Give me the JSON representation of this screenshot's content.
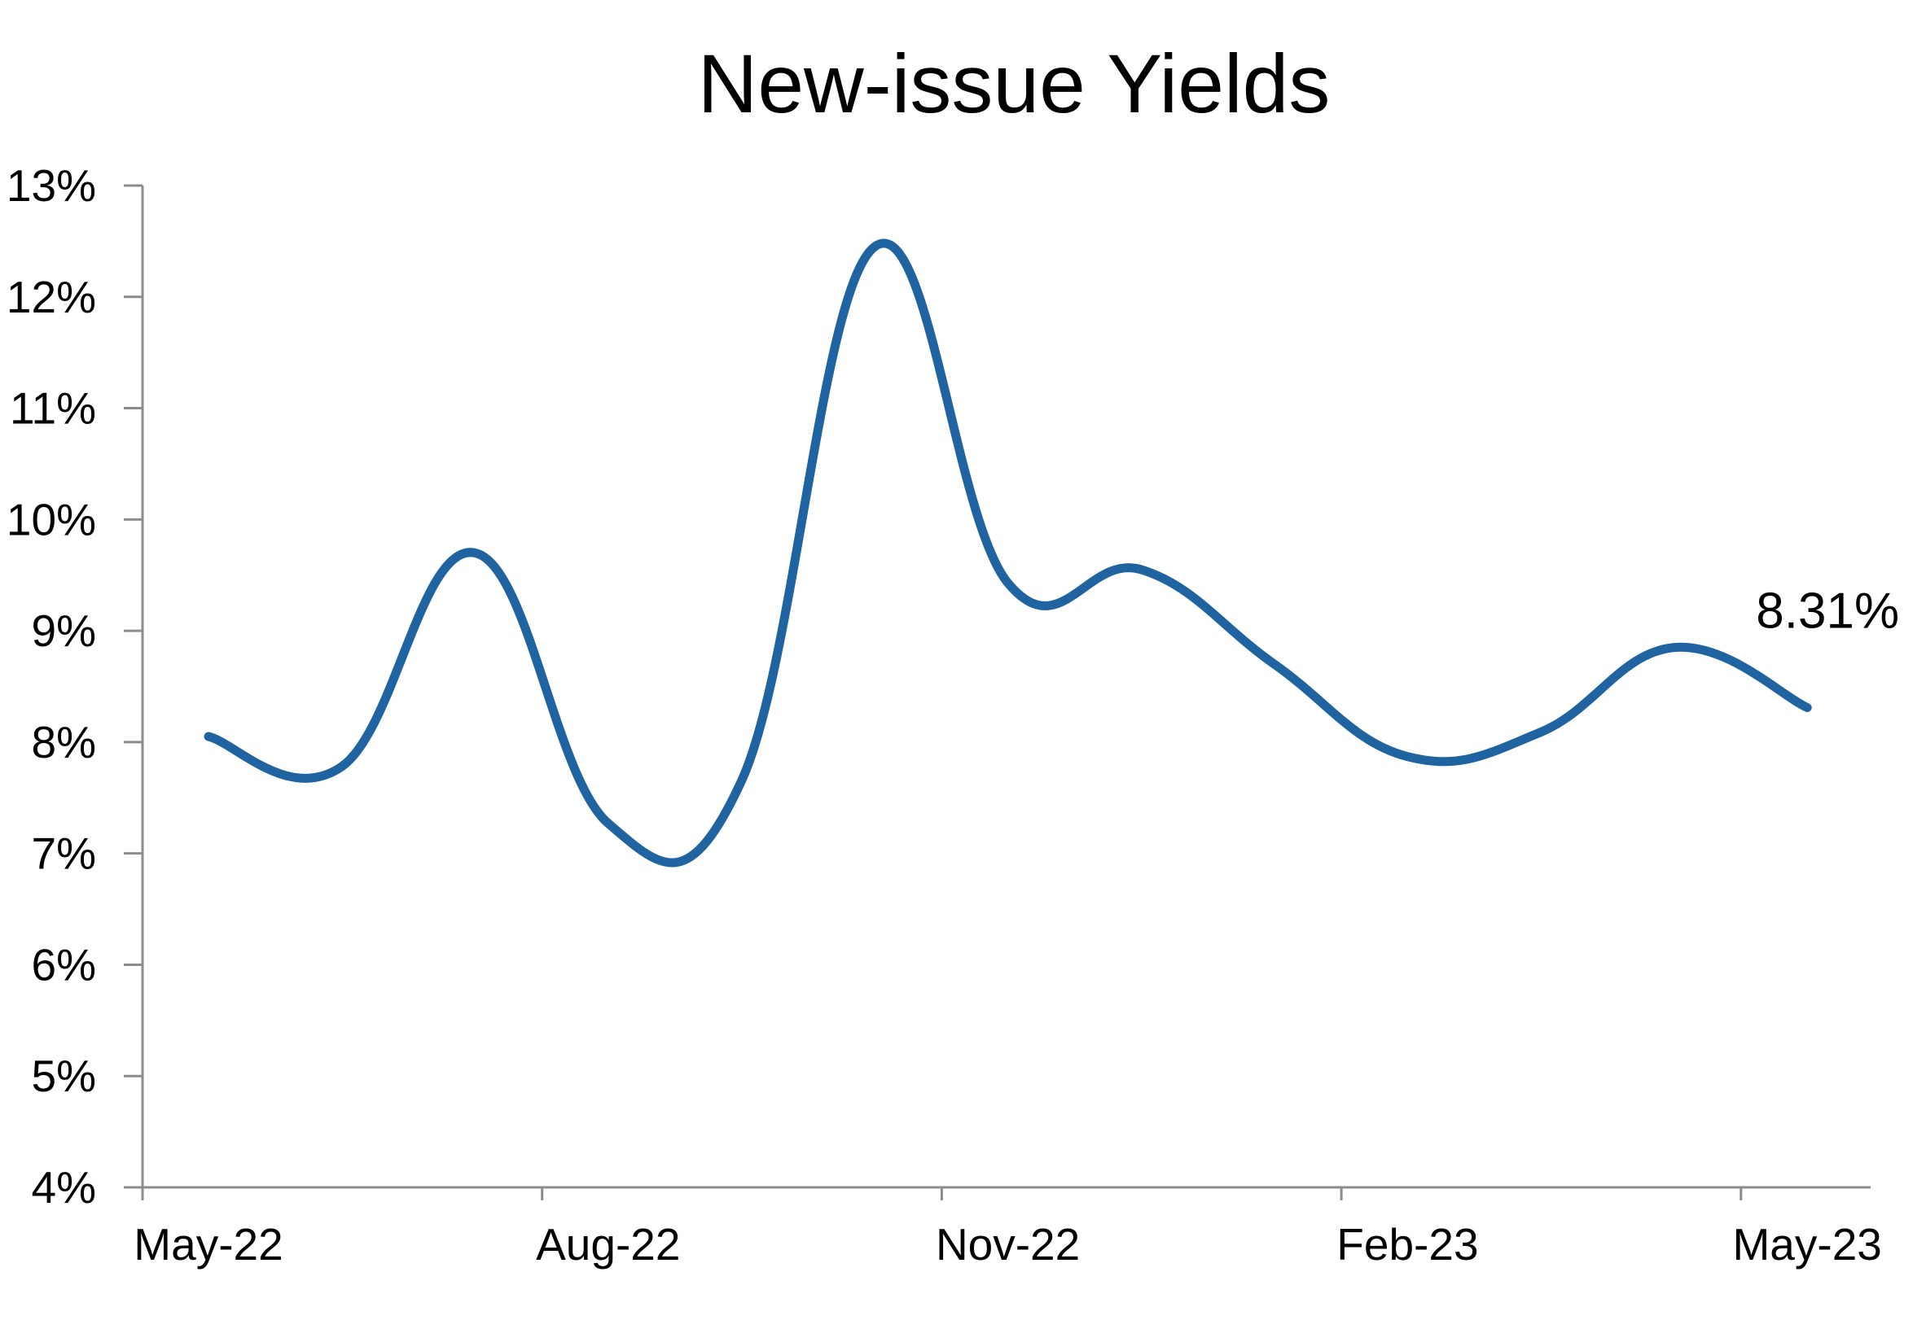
{
  "chart_data": {
    "type": "line",
    "title": "New-issue Yields",
    "xlabel": "",
    "ylabel": "",
    "y_tick_labels": [
      "4%",
      "5%",
      "6%",
      "7%",
      "8%",
      "9%",
      "10%",
      "11%",
      "12%",
      "13%"
    ],
    "y_tick_values": [
      4,
      5,
      6,
      7,
      8,
      9,
      10,
      11,
      12,
      13
    ],
    "ylim": [
      4,
      13
    ],
    "x_tick_labels": [
      "May-22",
      "Aug-22",
      "Nov-22",
      "Feb-23",
      "May-23"
    ],
    "x_tick_values": [
      "2022-05",
      "2022-08",
      "2022-11",
      "2023-02",
      "2023-05"
    ],
    "xlim": [
      "2022-05",
      "2023-06"
    ],
    "grid": false,
    "legend": "none",
    "series": [
      {
        "color": "#1f64a0",
        "x": [
          "2022-05",
          "2022-06",
          "2022-07",
          "2022-08",
          "2022-09",
          "2022-10",
          "2022-11",
          "2022-12",
          "2023-01",
          "2023-02",
          "2023-03",
          "2023-04",
          "2023-05"
        ],
        "values": [
          8.05,
          7.78,
          9.7,
          7.27,
          7.65,
          12.45,
          9.43,
          9.55,
          8.7,
          7.87,
          8.09,
          8.85,
          8.31
        ]
      }
    ],
    "annotations": [
      {
        "x": "2023-05",
        "y": 8.31,
        "text": "8.31%"
      }
    ]
  }
}
